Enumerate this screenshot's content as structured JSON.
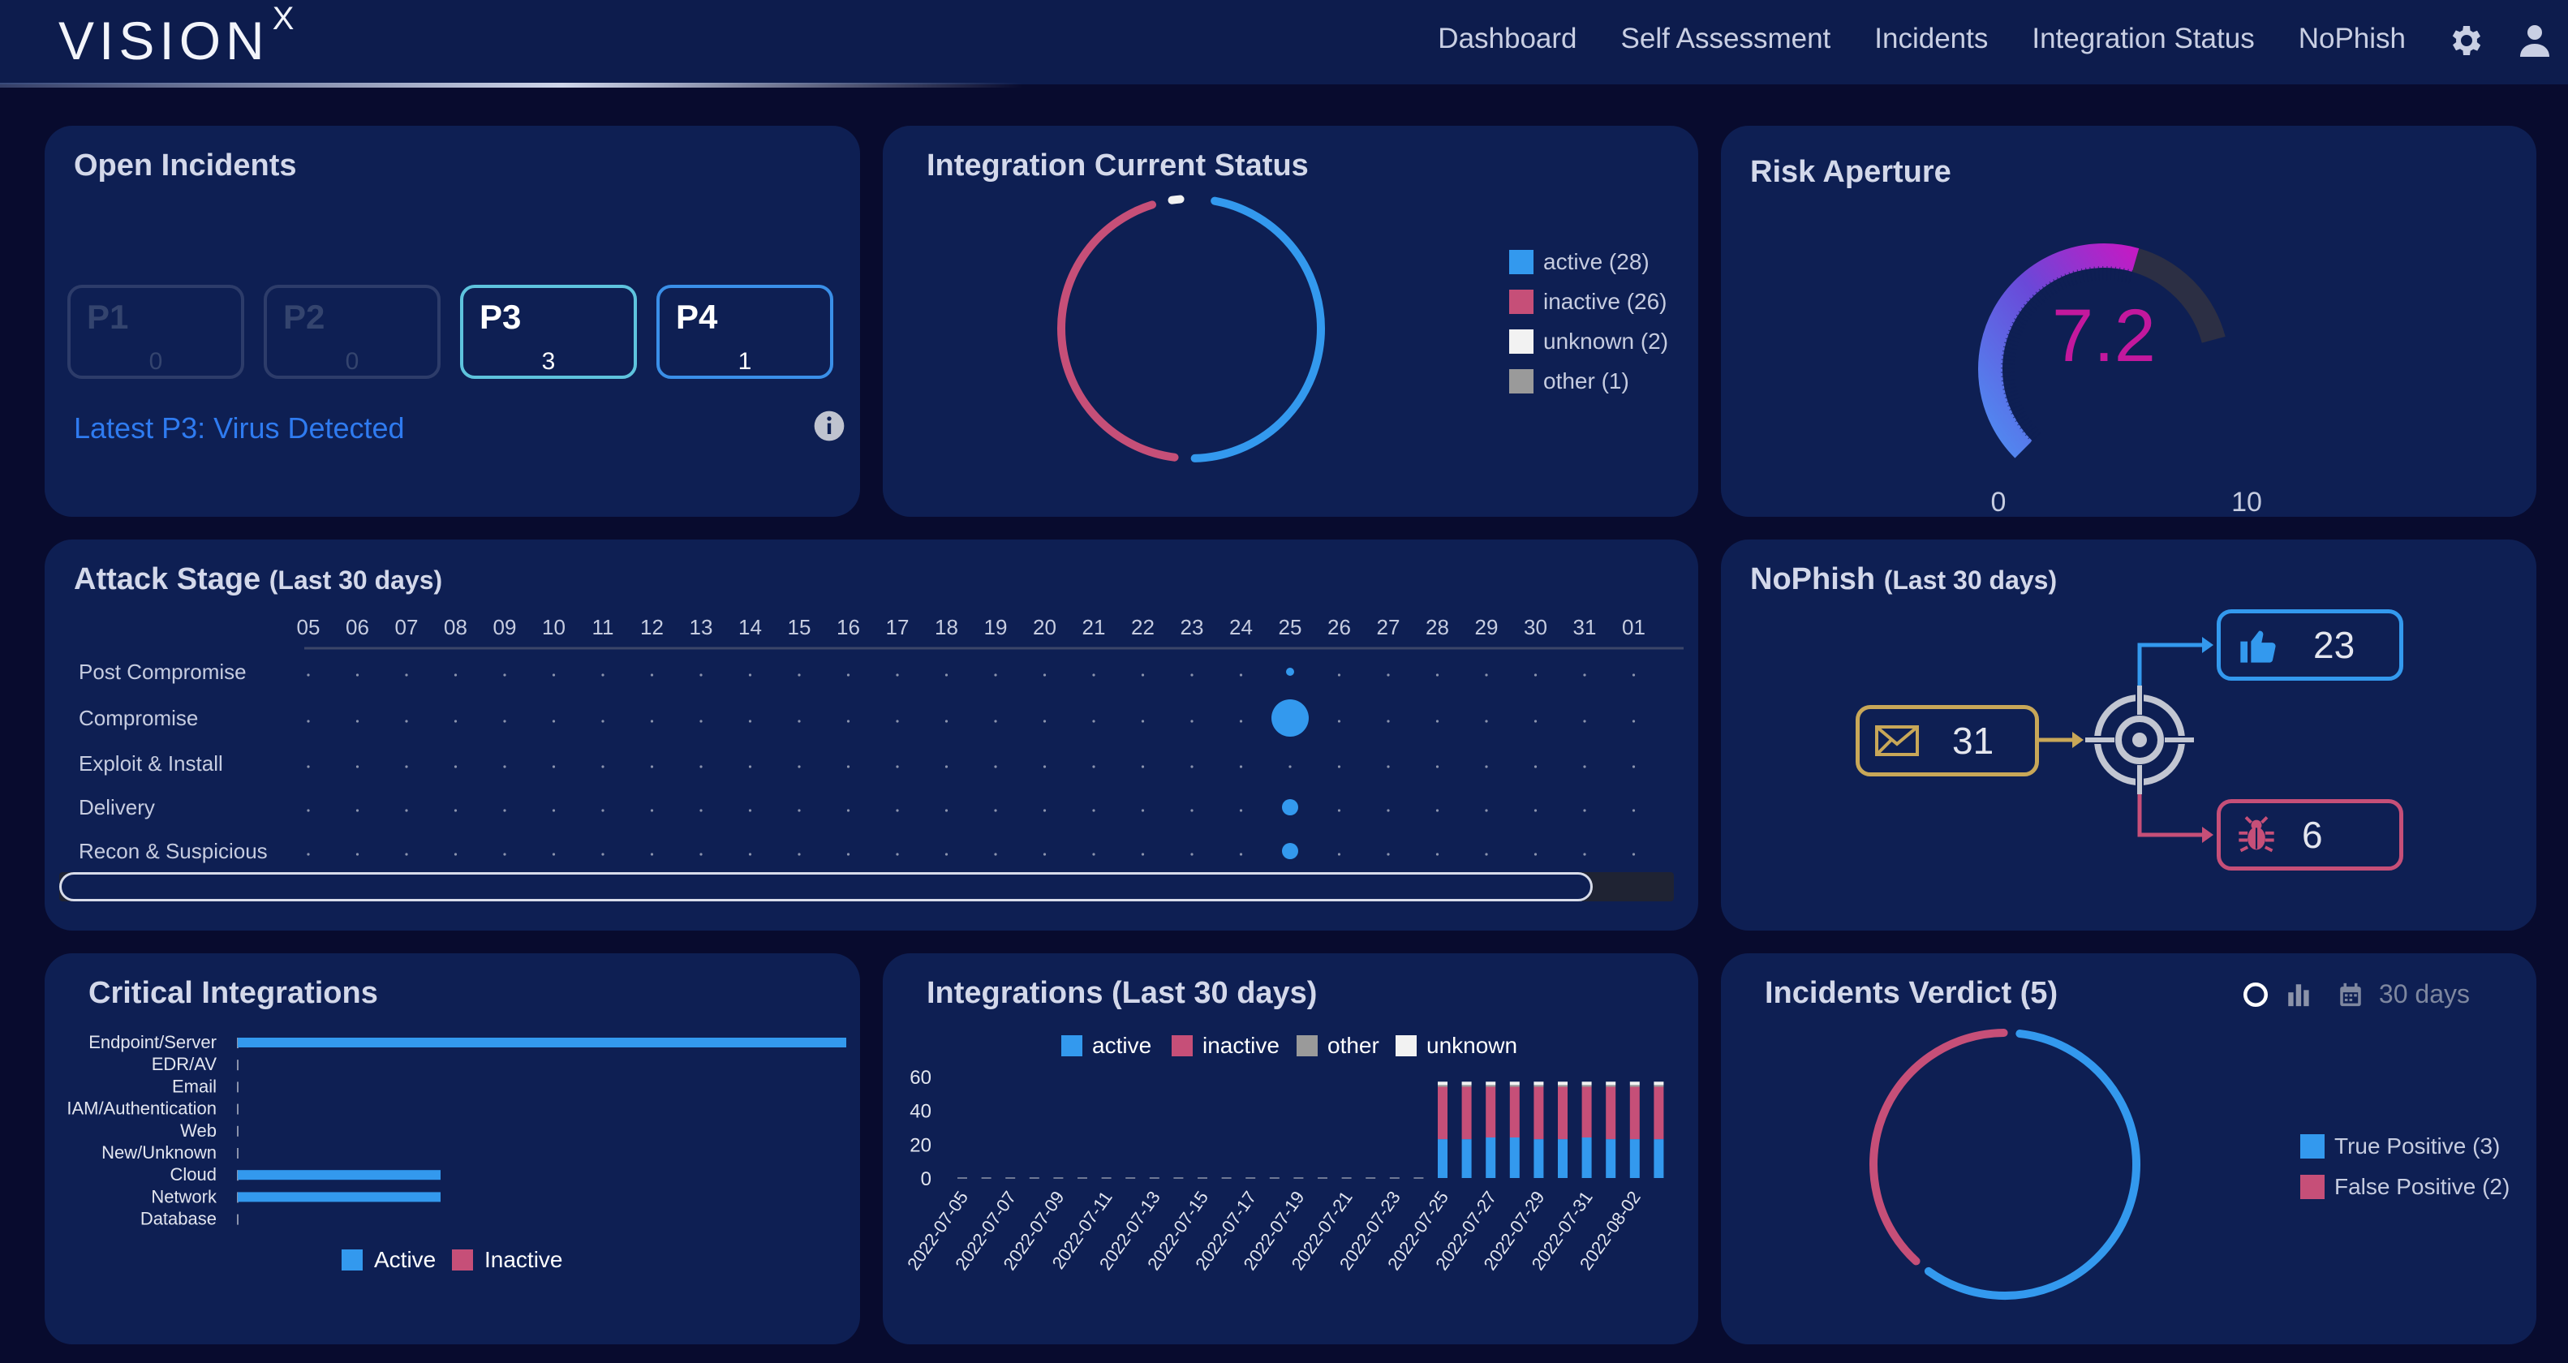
{
  "app": {
    "logo": "VISION",
    "logo_sup": "X"
  },
  "nav": {
    "items": [
      "Dashboard",
      "Self Assessment",
      "Incidents",
      "Integration Status",
      "NoPhish"
    ]
  },
  "open_incidents": {
    "title": "Open Incidents",
    "boxes": [
      {
        "label": "P1",
        "value": "0",
        "state": "inactive"
      },
      {
        "label": "P2",
        "value": "0",
        "state": "inactive"
      },
      {
        "label": "P3",
        "value": "3",
        "state": "active",
        "color": "#5ec3dd"
      },
      {
        "label": "P4",
        "value": "1",
        "state": "active",
        "color": "#3a8fe8"
      }
    ],
    "latest": "Latest P3: Virus Detected"
  },
  "integration_status": {
    "title": "Integration Current Status",
    "legend": [
      {
        "label": "active (28)",
        "value": 28,
        "color": "#3399ee"
      },
      {
        "label": "inactive (26)",
        "value": 26,
        "color": "#c64f78"
      },
      {
        "label": "unknown (2)",
        "value": 2,
        "color": "#f2f2f2"
      },
      {
        "label": "other (1)",
        "value": 1,
        "color": "#9a9a9a"
      }
    ]
  },
  "risk": {
    "title": "Risk Aperture",
    "value": "7.2",
    "numeric": 7.2,
    "min_label": "0",
    "max_label": "10",
    "color": "#c3189d"
  },
  "attack_stage": {
    "title": "Attack Stage",
    "title_sub": "(Last 30 days)",
    "days": [
      "05",
      "06",
      "07",
      "08",
      "09",
      "10",
      "11",
      "12",
      "13",
      "14",
      "15",
      "16",
      "17",
      "18",
      "19",
      "20",
      "21",
      "22",
      "23",
      "24",
      "25",
      "26",
      "27",
      "28",
      "29",
      "30",
      "31",
      "01"
    ],
    "stages": [
      "Post Compromise",
      "Compromise",
      "Exploit & Install",
      "Delivery",
      "Recon & Suspicious"
    ],
    "events": [
      {
        "stage": "Post Compromise",
        "day": "25",
        "count": 1
      },
      {
        "stage": "Compromise",
        "day": "25",
        "count": 8
      },
      {
        "stage": "Delivery",
        "day": "25",
        "count": 2
      },
      {
        "stage": "Recon & Suspicious",
        "day": "25",
        "count": 2
      }
    ]
  },
  "nophish": {
    "title": "NoPhish",
    "title_sub": "(Last 30 days)",
    "emails": "31",
    "safe": "23",
    "malicious": "6"
  },
  "critical_integrations": {
    "title": "Critical Integrations",
    "categories": [
      "Endpoint/Server",
      "EDR/AV",
      "Email",
      "IAM/Authentication",
      "Web",
      "New/Unknown",
      "Cloud",
      "Network",
      "Database"
    ],
    "active": [
      3,
      0,
      0,
      0,
      0,
      0,
      1,
      1,
      0
    ],
    "inactive": [
      0,
      0,
      0,
      0,
      0,
      0,
      0,
      0,
      0
    ],
    "xmax": 3,
    "legend": [
      "Active",
      "Inactive"
    ],
    "colors": [
      "#3399ee",
      "#c64f78"
    ]
  },
  "chart_data": {
    "type": "bar",
    "title": "Integrations (Last 30 days)",
    "stacked": true,
    "categories": [
      "2022-07-05",
      "2022-07-06",
      "2022-07-07",
      "2022-07-08",
      "2022-07-09",
      "2022-07-10",
      "2022-07-11",
      "2022-07-12",
      "2022-07-13",
      "2022-07-14",
      "2022-07-15",
      "2022-07-16",
      "2022-07-17",
      "2022-07-18",
      "2022-07-19",
      "2022-07-20",
      "2022-07-21",
      "2022-07-22",
      "2022-07-23",
      "2022-07-24",
      "2022-07-25",
      "2022-07-26",
      "2022-07-27",
      "2022-07-28",
      "2022-07-29",
      "2022-07-30",
      "2022-07-31",
      "2022-08-01",
      "2022-08-02",
      "2022-08-03"
    ],
    "tick_labels": [
      "2022-07-05",
      "2022-07-07",
      "2022-07-09",
      "2022-07-11",
      "2022-07-13",
      "2022-07-15",
      "2022-07-17",
      "2022-07-19",
      "2022-07-21",
      "2022-07-23",
      "2022-07-25",
      "2022-07-27",
      "2022-07-29",
      "2022-07-31",
      "2022-08-02"
    ],
    "series": [
      {
        "name": "active",
        "color": "#3399ee",
        "values": [
          0,
          0,
          0,
          0,
          0,
          0,
          0,
          0,
          0,
          0,
          0,
          0,
          0,
          0,
          0,
          0,
          0,
          0,
          0,
          0,
          23,
          23,
          24,
          24,
          23,
          23,
          24,
          23,
          23,
          23
        ]
      },
      {
        "name": "inactive",
        "color": "#c64f78",
        "values": [
          0,
          0,
          0,
          0,
          0,
          0,
          0,
          0,
          0,
          0,
          0,
          0,
          0,
          0,
          0,
          0,
          0,
          0,
          0,
          0,
          31,
          31,
          30,
          30,
          31,
          31,
          30,
          31,
          31,
          31
        ]
      },
      {
        "name": "other",
        "color": "#9a9a9a",
        "values": [
          0,
          0,
          0,
          0,
          0,
          0,
          0,
          0,
          0,
          0,
          0,
          0,
          0,
          0,
          0,
          0,
          0,
          0,
          0,
          0,
          1,
          1,
          1,
          1,
          1,
          1,
          1,
          1,
          1,
          1
        ]
      },
      {
        "name": "unknown",
        "color": "#f2f2f2",
        "values": [
          0,
          0,
          0,
          0,
          0,
          0,
          0,
          0,
          0,
          0,
          0,
          0,
          0,
          0,
          0,
          0,
          0,
          0,
          0,
          0,
          2,
          2,
          2,
          2,
          2,
          2,
          2,
          2,
          2,
          2
        ]
      }
    ],
    "yticks": [
      "0",
      "20",
      "40",
      "60"
    ],
    "ylim": [
      0,
      60
    ]
  },
  "verdict": {
    "title": "Incidents Verdict (5)",
    "range_label": "30 days",
    "legend": [
      {
        "label": "True Positive (3)",
        "value": 3,
        "color": "#3399ee"
      },
      {
        "label": "False Positive (2)",
        "value": 2,
        "color": "#c64f78"
      }
    ]
  }
}
